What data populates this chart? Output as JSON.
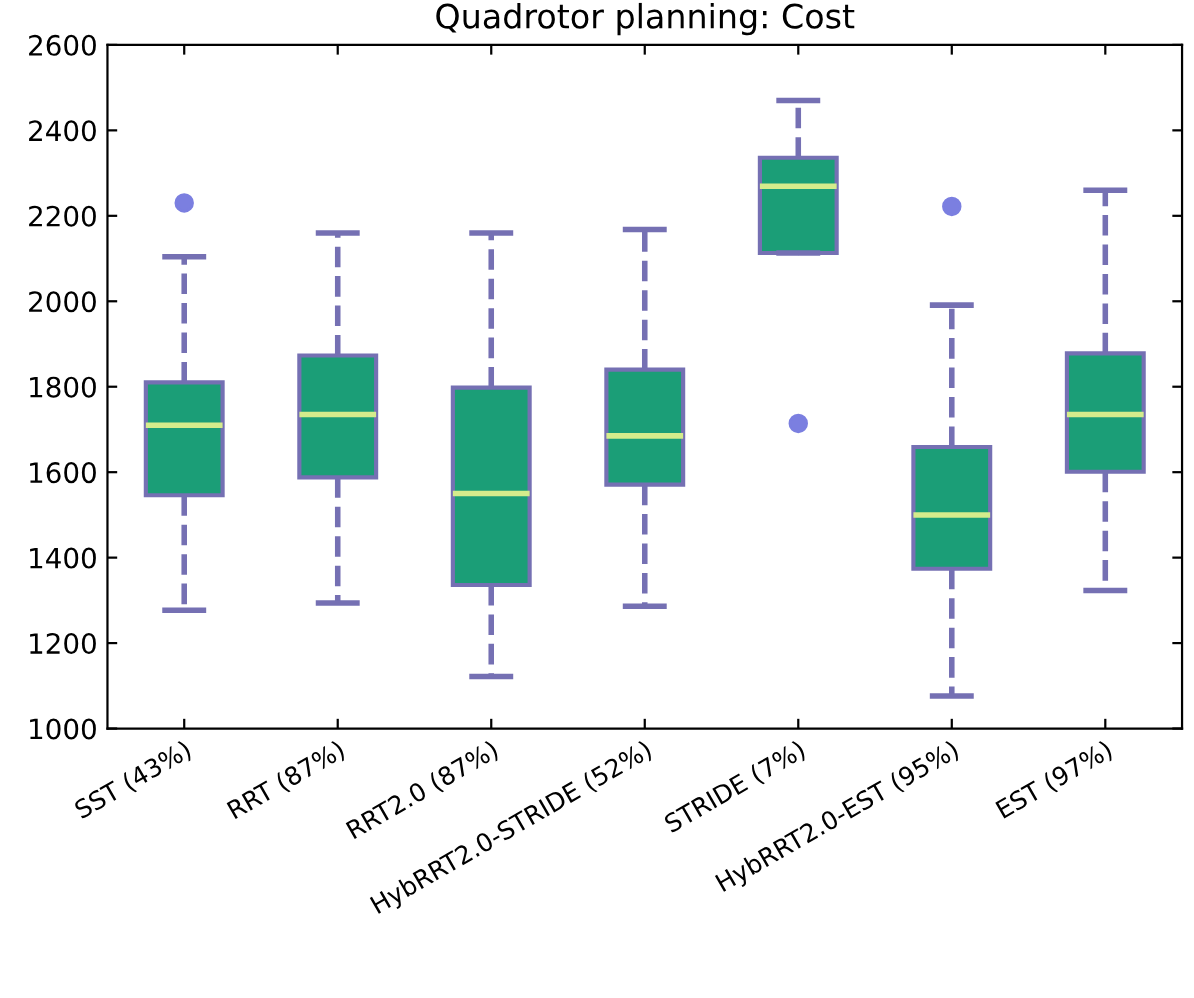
{
  "chart_data": {
    "type": "box",
    "title": "Quadrotor planning: Cost",
    "categories": [
      "SST (43%)",
      "RRT (87%)",
      "RRT2.0 (87%)",
      "HybRRT2.0-STRIDE (52%)",
      "STRIDE (7%)",
      "HybRRT2.0-EST (95%)",
      "EST (97%)"
    ],
    "boxes": [
      {
        "low": 1277,
        "q1": 1546,
        "median": 1710,
        "q3": 1810,
        "high": 2104,
        "outliers": [
          2230
        ]
      },
      {
        "low": 1294,
        "q1": 1588,
        "median": 1735,
        "q3": 1873,
        "high": 2160
      },
      {
        "low": 1122,
        "q1": 1336,
        "median": 1550,
        "q3": 1798,
        "high": 2160
      },
      {
        "low": 1286,
        "q1": 1571,
        "median": 1685,
        "q3": 1840,
        "high": 2168
      },
      {
        "low": 2113,
        "q1": 2113,
        "median": 2269,
        "q3": 2336,
        "high": 2470,
        "outliers": [
          1714
        ]
      },
      {
        "low": 1076,
        "q1": 1374,
        "median": 1500,
        "q3": 1659,
        "high": 1991,
        "outliers": [
          2222
        ]
      },
      {
        "low": 1323,
        "q1": 1601,
        "median": 1735,
        "q3": 1878,
        "high": 2260
      }
    ],
    "color": "#1b9e77",
    "line_style": "dashed",
    "ylim": [
      1000,
      2600
    ],
    "yticks": [
      1000,
      1200,
      1400,
      1600,
      1800,
      2000,
      2200,
      2400,
      2600
    ],
    "grid": false
  }
}
